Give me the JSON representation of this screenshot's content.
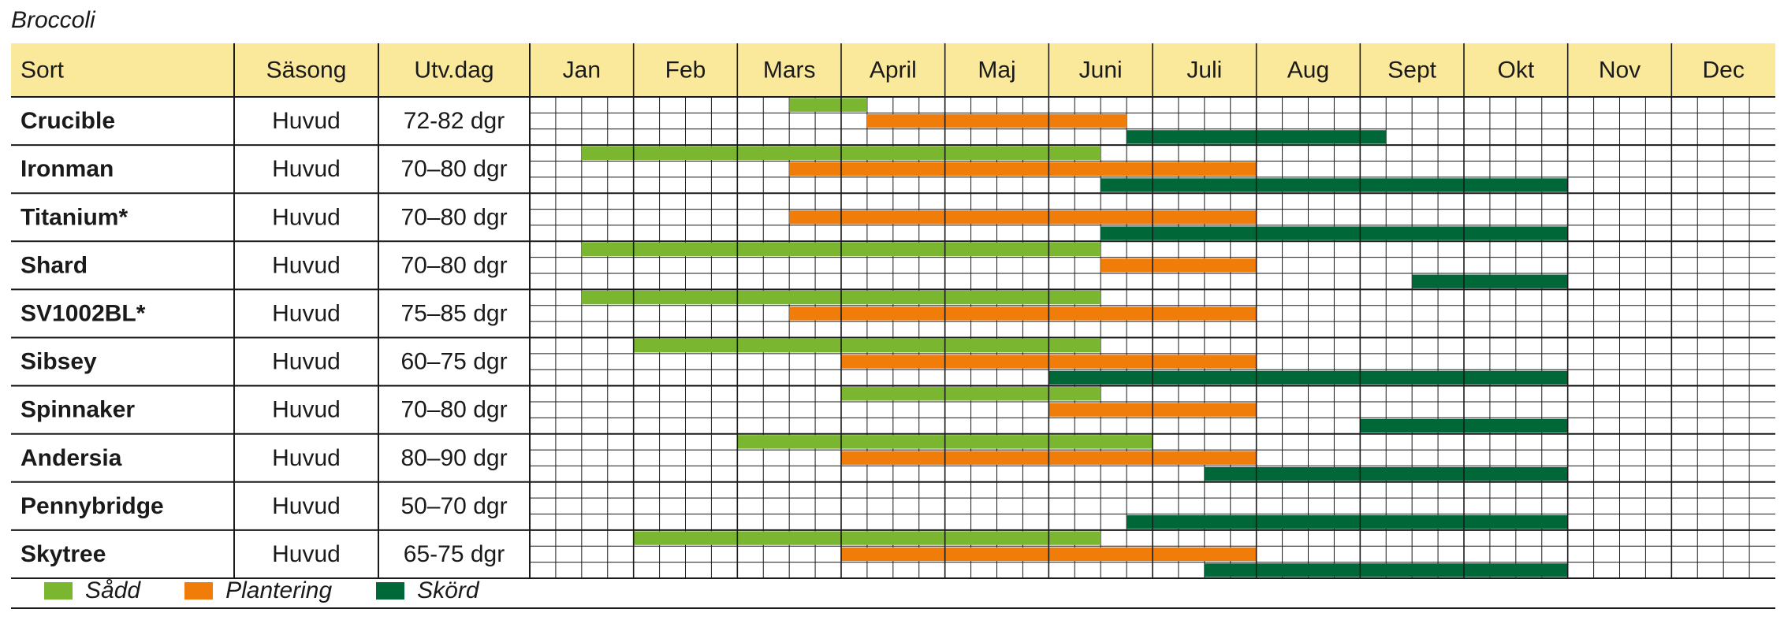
{
  "title": "Broccoli",
  "colors": {
    "header_bg": "#fbe99b",
    "sow": "#7ab630",
    "plant": "#f07d0a",
    "harvest": "#006838",
    "grid": "#1a1a1a"
  },
  "legend": [
    {
      "key": "sow",
      "label": "Sådd"
    },
    {
      "key": "plant",
      "label": "Plantering"
    },
    {
      "key": "harvest",
      "label": "Skörd"
    }
  ],
  "chart_data": {
    "type": "table",
    "columns": [
      "Sort",
      "Säsong",
      "Utv.dag"
    ],
    "months": [
      "Jan",
      "Feb",
      "Mars",
      "April",
      "Maj",
      "Juni",
      "Juli",
      "Aug",
      "Sept",
      "Okt",
      "Nov",
      "Dec"
    ],
    "periods_per_month": 4,
    "bar_units": "quarter-month periods (1 = first quarter of Jan, 48 = last quarter of Dec), inclusive",
    "rows": [
      {
        "name": "Crucible",
        "season": "Huvud",
        "days": "72-82 dgr",
        "sow": [
          [
            11,
            13
          ]
        ],
        "plant": [
          [
            14,
            23
          ]
        ],
        "harvest": [
          [
            24,
            33
          ]
        ]
      },
      {
        "name": "Ironman",
        "season": "Huvud",
        "days": "70–80 dgr",
        "sow": [
          [
            3,
            22
          ]
        ],
        "plant": [
          [
            11,
            28
          ]
        ],
        "harvest": [
          [
            23,
            40
          ]
        ]
      },
      {
        "name": "Titanium*",
        "season": "Huvud",
        "days": "70–80 dgr",
        "sow": [],
        "plant": [
          [
            11,
            28
          ]
        ],
        "harvest": [
          [
            23,
            40
          ]
        ]
      },
      {
        "name": "Shard",
        "season": "Huvud",
        "days": "70–80 dgr",
        "sow": [
          [
            3,
            22
          ]
        ],
        "plant": [
          [
            23,
            28
          ]
        ],
        "harvest": [
          [
            35,
            40
          ]
        ]
      },
      {
        "name": "SV1002BL*",
        "season": "Huvud",
        "days": "75–85 dgr",
        "sow": [
          [
            3,
            22
          ]
        ],
        "plant": [
          [
            11,
            28
          ]
        ],
        "harvest": []
      },
      {
        "name": "Sibsey",
        "season": "Huvud",
        "days": "60–75 dgr",
        "sow": [
          [
            5,
            22
          ]
        ],
        "plant": [
          [
            13,
            28
          ]
        ],
        "harvest": [
          [
            21,
            40
          ]
        ]
      },
      {
        "name": "Spinnaker",
        "season": "Huvud",
        "days": "70–80 dgr",
        "sow": [
          [
            13,
            22
          ]
        ],
        "plant": [
          [
            21,
            28
          ]
        ],
        "harvest": [
          [
            33,
            40
          ]
        ]
      },
      {
        "name": "Andersia",
        "season": "Huvud",
        "days": "80–90 dgr",
        "sow": [
          [
            9,
            24
          ]
        ],
        "plant": [
          [
            13,
            28
          ]
        ],
        "harvest": [
          [
            27,
            40
          ]
        ]
      },
      {
        "name": "Pennybridge",
        "season": "Huvud",
        "days": "50–70 dgr",
        "sow": [],
        "plant": [],
        "harvest": [
          [
            24,
            40
          ]
        ]
      },
      {
        "name": "Skytree",
        "season": "Huvud",
        "days": "65-75 dgr",
        "sow": [
          [
            5,
            22
          ]
        ],
        "plant": [
          [
            13,
            28
          ]
        ],
        "harvest": [
          [
            27,
            40
          ]
        ]
      }
    ]
  }
}
